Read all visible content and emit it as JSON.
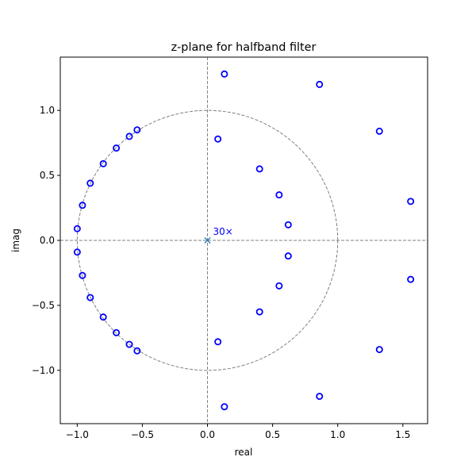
{
  "chart_data": {
    "type": "scatter",
    "title": "z-plane for halfband filter",
    "xlabel": "real",
    "ylabel": "imag",
    "xlim": [
      -1.13,
      1.69
    ],
    "ylim": [
      -1.41,
      1.41
    ],
    "xticks": [
      -1.0,
      -0.5,
      0.0,
      0.5,
      1.0,
      1.5
    ],
    "xtick_labels": [
      "−1.0",
      "−0.5",
      "0.0",
      "0.5",
      "1.0",
      "1.5"
    ],
    "yticks": [
      -1.0,
      -0.5,
      0.0,
      0.5,
      1.0
    ],
    "ytick_labels": [
      "−1.0",
      "−0.5",
      "0.0",
      "0.5",
      "1.0"
    ],
    "grid": false,
    "unit_circle": true,
    "zeros": [
      [
        0.13,
        1.28
      ],
      [
        0.86,
        1.2
      ],
      [
        1.32,
        0.84
      ],
      [
        1.56,
        0.3
      ],
      [
        0.08,
        0.78
      ],
      [
        0.4,
        0.55
      ],
      [
        0.55,
        0.35
      ],
      [
        0.62,
        0.12
      ],
      [
        -0.54,
        0.85
      ],
      [
        -0.6,
        0.8
      ],
      [
        -0.7,
        0.71
      ],
      [
        -0.8,
        0.59
      ],
      [
        -0.9,
        0.44
      ],
      [
        -0.96,
        0.27
      ],
      [
        -1.0,
        0.09
      ],
      [
        0.13,
        -1.28
      ],
      [
        0.86,
        -1.2
      ],
      [
        1.32,
        -0.84
      ],
      [
        1.56,
        -0.3
      ],
      [
        0.08,
        -0.78
      ],
      [
        0.4,
        -0.55
      ],
      [
        0.55,
        -0.35
      ],
      [
        0.62,
        -0.12
      ],
      [
        -0.54,
        -0.85
      ],
      [
        -0.6,
        -0.8
      ],
      [
        -0.7,
        -0.71
      ],
      [
        -0.8,
        -0.59
      ],
      [
        -0.9,
        -0.44
      ],
      [
        -0.96,
        -0.27
      ],
      [
        -1.0,
        -0.09
      ]
    ],
    "poles": [
      [
        0.0,
        0.0
      ]
    ],
    "pole_label": "30×",
    "zero_color": "#0000ff",
    "pole_color": "#1f77b4",
    "circle_color": "#808080"
  }
}
